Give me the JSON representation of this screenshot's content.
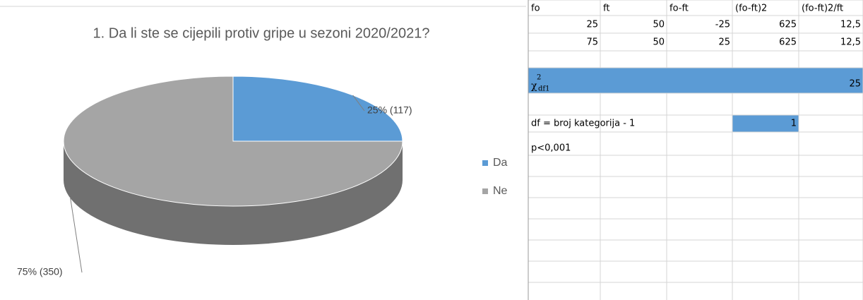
{
  "chart_data": {
    "type": "pie",
    "title": "1. Da li ste se cijepili protiv gripe u sezoni 2020/2021?",
    "categories": [
      "Da",
      "Ne"
    ],
    "values": [
      25,
      75
    ],
    "value_labels": [
      "25% (117)",
      "75% (350)"
    ],
    "colors": [
      "#5b9bd5",
      "#a5a5a5"
    ],
    "legend": "right"
  },
  "table": {
    "header": [
      "fo",
      "ft",
      "fo-ft",
      "(fo-ft)2",
      "(fo-ft)2/ft"
    ],
    "rows": [
      [
        "25",
        "50",
        "-25",
        "625",
        "12,5"
      ],
      [
        "75",
        "50",
        "25",
        "625",
        "12,5"
      ]
    ],
    "chi": {
      "symbol": "χ",
      "sup": "2",
      "sub": "df1",
      "value": "25"
    },
    "df": {
      "label": "df = broj kategorija - 1",
      "value": "1"
    },
    "p": "p<0,001"
  }
}
